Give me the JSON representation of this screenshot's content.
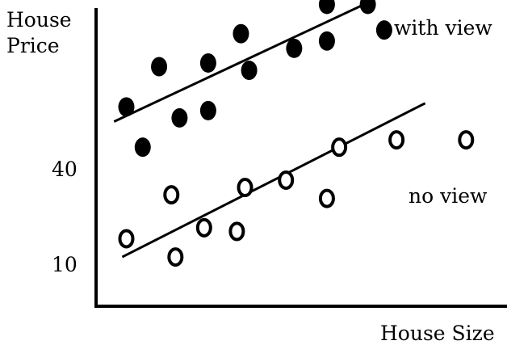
{
  "chart_data": {
    "type": "scatter",
    "ylabel_lines": [
      "House",
      "Price"
    ],
    "xlabel": "House Size",
    "y_tick_labels": [
      {
        "value": 40,
        "label": "40"
      },
      {
        "value": 10,
        "label": "10"
      }
    ],
    "y_axis_range": [
      -4,
      77
    ],
    "x_axis_range": [
      0,
      100
    ],
    "grid": false,
    "series": [
      {
        "name": "with view",
        "marker": "filled-circle",
        "color": "#000000",
        "points": [
          {
            "x": 7,
            "y": 50
          },
          {
            "x": 11,
            "y": 39
          },
          {
            "x": 15,
            "y": 61
          },
          {
            "x": 20,
            "y": 47
          },
          {
            "x": 27,
            "y": 49
          },
          {
            "x": 27,
            "y": 62
          },
          {
            "x": 35,
            "y": 70
          },
          {
            "x": 37,
            "y": 60
          },
          {
            "x": 48,
            "y": 66
          },
          {
            "x": 56,
            "y": 68
          },
          {
            "x": 56,
            "y": 78
          },
          {
            "x": 66,
            "y": 78
          },
          {
            "x": 70,
            "y": 71
          }
        ],
        "trend_line": {
          "x_start": 4,
          "y_start": 46,
          "x_end": 67,
          "y_end": 79
        }
      },
      {
        "name": "no view",
        "marker": "open-circle",
        "color": "#000000",
        "points": [
          {
            "x": 7,
            "y": 14
          },
          {
            "x": 18,
            "y": 26
          },
          {
            "x": 19,
            "y": 9
          },
          {
            "x": 26,
            "y": 17
          },
          {
            "x": 34,
            "y": 16
          },
          {
            "x": 36,
            "y": 28
          },
          {
            "x": 46,
            "y": 30
          },
          {
            "x": 56,
            "y": 25
          },
          {
            "x": 59,
            "y": 39
          },
          {
            "x": 73,
            "y": 41
          },
          {
            "x": 90,
            "y": 41
          }
        ],
        "trend_line": {
          "x_start": 6,
          "y_start": 9,
          "x_end": 80,
          "y_end": 51
        }
      }
    ]
  }
}
